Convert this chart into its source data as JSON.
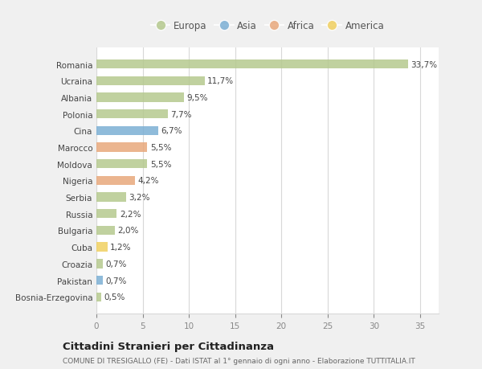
{
  "categories": [
    "Romania",
    "Ucraina",
    "Albania",
    "Polonia",
    "Cina",
    "Marocco",
    "Moldova",
    "Nigeria",
    "Serbia",
    "Russia",
    "Bulgaria",
    "Cuba",
    "Croazia",
    "Pakistan",
    "Bosnia-Erzegovina"
  ],
  "values": [
    33.7,
    11.7,
    9.5,
    7.7,
    6.7,
    5.5,
    5.5,
    4.2,
    3.2,
    2.2,
    2.0,
    1.2,
    0.7,
    0.7,
    0.5
  ],
  "labels": [
    "33,7%",
    "11,7%",
    "9,5%",
    "7,7%",
    "6,7%",
    "5,5%",
    "5,5%",
    "4,2%",
    "3,2%",
    "2,2%",
    "2,0%",
    "1,2%",
    "0,7%",
    "0,7%",
    "0,5%"
  ],
  "continents": [
    "Europa",
    "Europa",
    "Europa",
    "Europa",
    "Asia",
    "Africa",
    "Europa",
    "Africa",
    "Europa",
    "Europa",
    "Europa",
    "America",
    "Europa",
    "Asia",
    "Europa"
  ],
  "continent_colors": {
    "Europa": "#b5c98e",
    "Asia": "#7bafd4",
    "Africa": "#e8a87c",
    "America": "#f0d060"
  },
  "legend_order": [
    "Europa",
    "Asia",
    "Africa",
    "America"
  ],
  "title": "Cittadini Stranieri per Cittadinanza",
  "subtitle": "COMUNE DI TRESIGALLO (FE) - Dati ISTAT al 1° gennaio di ogni anno - Elaborazione TUTTITALIA.IT",
  "xlim": [
    0,
    37
  ],
  "xticks": [
    0,
    5,
    10,
    15,
    20,
    25,
    30,
    35
  ],
  "background_color": "#f0f0f0",
  "plot_background": "#ffffff",
  "grid_color": "#d8d8d8"
}
